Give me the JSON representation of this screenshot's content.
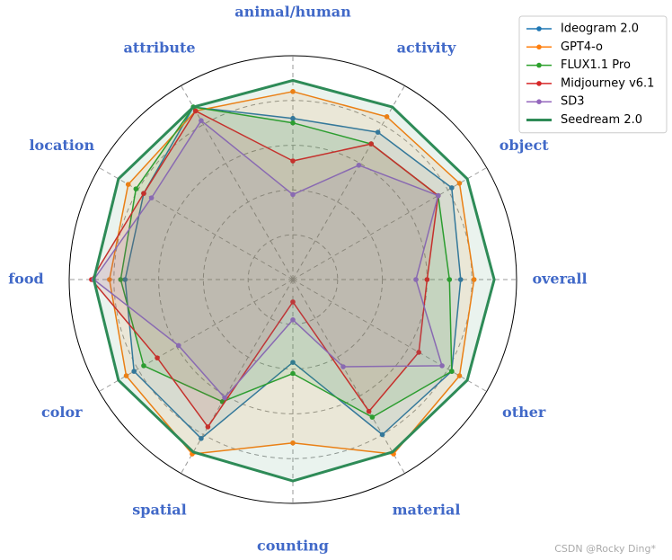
{
  "chart_data": {
    "type": "radar",
    "categories": [
      "animal/human",
      "activity",
      "object",
      "overall",
      "other",
      "material",
      "counting",
      "spatial",
      "color",
      "food",
      "location",
      "attribute"
    ],
    "ylim": [
      0,
      1
    ],
    "yticks": [
      0.2,
      0.4,
      0.6,
      0.8
    ],
    "grid": true,
    "legend": "upper right",
    "series": [
      {
        "name": "Ideogram 2.0",
        "color": "#1f77b4",
        "line_width": 1.5,
        "marker": true,
        "values": [
          0.72,
          0.76,
          0.82,
          0.75,
          0.82,
          0.8,
          0.37,
          0.82,
          0.82,
          0.75,
          0.77,
          0.89
        ]
      },
      {
        "name": "GPT4-o",
        "color": "#ff7f0e",
        "line_width": 1.5,
        "marker": true,
        "values": [
          0.84,
          0.84,
          0.86,
          0.81,
          0.86,
          0.9,
          0.73,
          0.9,
          0.86,
          0.82,
          0.85,
          0.87
        ]
      },
      {
        "name": "FLUX1.1 Pro",
        "color": "#2ca02c",
        "line_width": 1.5,
        "marker": true,
        "values": [
          0.7,
          0.7,
          0.75,
          0.7,
          0.82,
          0.71,
          0.42,
          0.63,
          0.77,
          0.77,
          0.81,
          0.89
        ]
      },
      {
        "name": "Midjourney v6.1",
        "color": "#d62728",
        "line_width": 1.5,
        "marker": true,
        "values": [
          0.53,
          0.7,
          0.75,
          0.6,
          0.65,
          0.68,
          0.1,
          0.76,
          0.7,
          0.9,
          0.77,
          0.87
        ]
      },
      {
        "name": "SD3",
        "color": "#9467bd",
        "line_width": 1.5,
        "marker": true,
        "values": [
          0.38,
          0.59,
          0.75,
          0.55,
          0.77,
          0.45,
          0.18,
          0.61,
          0.59,
          0.89,
          0.73,
          0.82
        ]
      },
      {
        "name": "Seedream 2.0",
        "color": "#2e8b57",
        "line_width": 3,
        "marker": false,
        "values": [
          0.89,
          0.89,
          0.9,
          0.9,
          0.9,
          0.89,
          0.9,
          0.89,
          0.9,
          0.89,
          0.9,
          0.89
        ]
      }
    ],
    "watermark": "CSDN @Rocky Ding*"
  }
}
